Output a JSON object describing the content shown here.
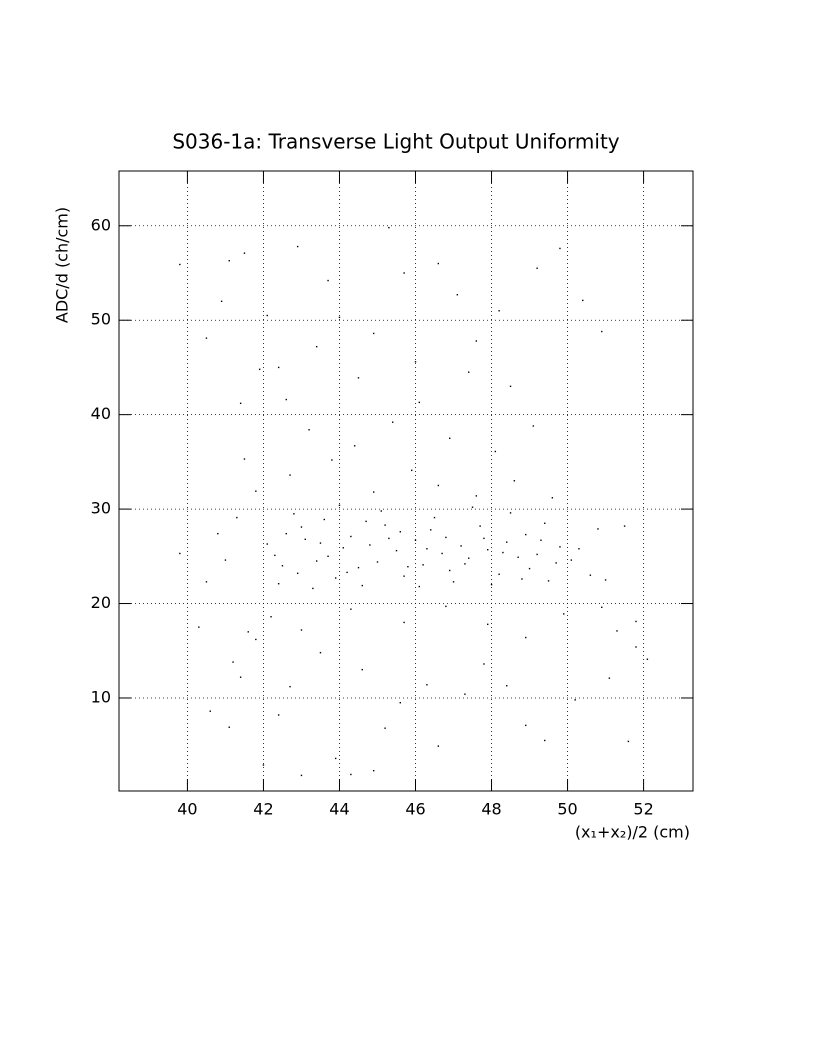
{
  "chart_data": {
    "type": "scatter",
    "title": "S036-1a: Transverse Light Output Uniformity",
    "x_label": "(x₁+x₂)/2 (cm)",
    "y_label": "ADC/d (ch/cm)",
    "color": "#000000",
    "grid": true,
    "xlim": [
      38.2,
      53.3
    ],
    "ylim": [
      0.15,
      65.8
    ],
    "xticks": [
      40,
      42,
      44,
      46,
      48,
      50,
      52
    ],
    "yticks": [
      10,
      20,
      30,
      40,
      50,
      60
    ],
    "x": [
      42.3,
      42.6,
      42.9,
      43.1,
      43.4,
      43.6,
      43.9,
      44.1,
      44.3,
      44.5,
      44.8,
      45.0,
      45.2,
      45.5,
      45.7,
      46.0,
      46.2,
      46.4,
      46.7,
      46.9,
      47.2,
      47.4,
      47.7,
      47.9,
      48.2,
      48.4,
      48.7,
      48.9,
      49.2,
      49.5,
      49.8,
      50.1,
      42.4,
      42.8,
      43.3,
      43.7,
      44.0,
      44.6,
      45.1,
      45.6,
      46.1,
      46.5,
      47.0,
      47.5,
      48.0,
      48.5,
      49.0,
      49.4,
      42.1,
      42.5,
      43.0,
      43.5,
      44.2,
      44.7,
      45.3,
      45.8,
      46.3,
      46.8,
      47.3,
      47.8,
      48.3,
      48.8,
      49.3,
      49.7,
      50.3,
      50.6,
      42.7,
      43.8,
      44.9,
      45.9,
      46.6,
      47.6,
      48.6,
      49.6,
      43.2,
      44.4,
      45.4,
      46.9,
      48.1,
      49.1,
      41.8,
      41.5,
      42.2,
      43.0,
      44.3,
      45.7,
      46.8,
      47.9,
      48.9,
      49.9,
      50.9,
      51.3,
      51.8,
      41.6,
      41.2,
      40.5,
      40.8,
      41.0,
      41.3,
      39.8,
      50.8,
      51.5,
      51.0,
      40.9,
      41.1,
      41.5,
      41.9,
      42.6,
      43.4,
      42.1,
      44.0,
      44.9,
      45.3,
      45.7,
      46.1,
      46.6,
      47.1,
      47.6,
      48.2,
      49.2,
      49.8,
      50.4,
      48.5,
      47.4,
      43.7,
      42.4,
      40.5,
      41.4,
      39.8,
      50.9,
      44.5,
      46.0,
      42.9,
      40.3,
      40.6,
      41.1,
      41.4,
      42.0,
      42.4,
      42.7,
      43.0,
      43.5,
      43.9,
      44.3,
      44.6,
      44.9,
      45.2,
      45.6,
      46.3,
      46.6,
      47.3,
      47.8,
      48.4,
      48.9,
      49.4,
      50.2,
      51.1,
      51.6,
      52.1,
      51.8,
      41.8
    ],
    "values": [
      25.1,
      27.4,
      23.2,
      26.8,
      24.5,
      28.9,
      22.7,
      25.9,
      27.1,
      23.8,
      26.2,
      24.4,
      28.3,
      25.6,
      22.9,
      26.7,
      24.1,
      27.8,
      25.3,
      23.5,
      26.1,
      24.8,
      28.2,
      25.7,
      23.1,
      26.5,
      24.9,
      27.3,
      25.2,
      22.4,
      26.0,
      24.6,
      22.1,
      29.5,
      21.6,
      25.0,
      30.4,
      21.9,
      29.8,
      27.6,
      21.8,
      29.1,
      22.3,
      30.2,
      22.0,
      29.6,
      23.7,
      28.5,
      26.3,
      24.0,
      28.1,
      26.4,
      23.3,
      28.7,
      26.9,
      23.9,
      25.8,
      27.0,
      24.2,
      26.9,
      25.4,
      22.6,
      26.7,
      24.3,
      25.8,
      23.0,
      33.6,
      35.2,
      31.8,
      34.1,
      32.5,
      31.4,
      33.0,
      31.2,
      38.4,
      36.7,
      39.2,
      37.5,
      36.1,
      38.8,
      31.9,
      35.3,
      18.6,
      17.2,
      19.4,
      18.0,
      19.7,
      17.8,
      16.4,
      18.9,
      19.6,
      17.1,
      15.4,
      17.0,
      13.8,
      22.3,
      27.4,
      24.6,
      29.1,
      25.3,
      27.9,
      28.2,
      22.5,
      52.0,
      56.3,
      57.1,
      44.8,
      41.6,
      47.2,
      50.5,
      50.3,
      48.6,
      59.8,
      55.0,
      41.3,
      56.0,
      52.7,
      47.8,
      51.0,
      55.5,
      57.6,
      52.1,
      43.0,
      44.5,
      54.2,
      45.0,
      48.1,
      41.2,
      55.9,
      48.8,
      43.9,
      45.6,
      57.8,
      17.5,
      8.6,
      6.9,
      12.2,
      2.9,
      8.2,
      11.2,
      1.8,
      14.8,
      3.6,
      1.9,
      13.0,
      2.3,
      6.8,
      9.5,
      11.4,
      4.9,
      10.4,
      13.6,
      11.3,
      7.1,
      5.5,
      9.8,
      12.1,
      5.4,
      14.1,
      18.1,
      16.2
    ]
  }
}
